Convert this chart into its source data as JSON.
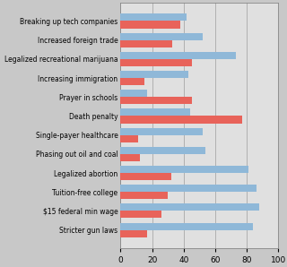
{
  "categories": [
    "Breaking up tech companies",
    "Increased foreign trade",
    "Legalized recreational marijuana",
    "Increasing immigration",
    "Prayer in schools",
    "Death penalty",
    "Single-payer healthcare",
    "Phasing out oil and coal",
    "Legalized abortion",
    "Tuition-free college",
    "$15 federal min wage",
    "Stricter gun laws"
  ],
  "democrat_values": [
    42,
    52,
    73,
    43,
    17,
    44,
    52,
    54,
    81,
    86,
    88,
    84
  ],
  "republican_values": [
    38,
    33,
    45,
    15,
    45,
    77,
    11,
    12,
    32,
    30,
    26,
    17
  ],
  "democrat_color": "#8fb8d8",
  "republican_color": "#e8635a",
  "background_color": "#c8c8c8",
  "plot_background_color": "#e0e0e0",
  "grid_color": "#b0b0b0",
  "xlim": [
    0,
    100
  ],
  "xticks": [
    0,
    20,
    40,
    60,
    80,
    100
  ],
  "bar_height": 0.38,
  "figsize": [
    3.2,
    2.98
  ],
  "dpi": 100
}
